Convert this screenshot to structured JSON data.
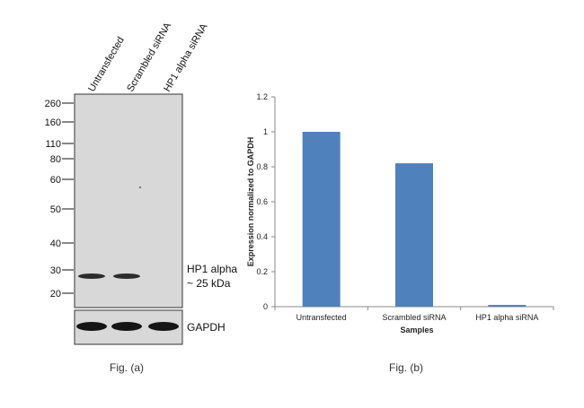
{
  "blot": {
    "lanes": [
      "Untransfected",
      "Scrambled siRNA",
      "HP1 alpha siRNA"
    ],
    "mw_markers": [
      "260",
      "160",
      "110",
      "80",
      "60",
      "50",
      "40",
      "30",
      "20"
    ],
    "band_label_line1": "HP1 alpha",
    "band_label_line2": "~ 25 kDa",
    "loading_control": "GAPDH",
    "band_present": [
      true,
      true,
      false
    ],
    "caption": "Fig. (a)"
  },
  "chart_data": {
    "type": "bar",
    "categories": [
      "Untransfected",
      "Scrambled siRNA",
      "HP1 alpha siRNA"
    ],
    "values": [
      1.0,
      0.82,
      0.01
    ],
    "xlabel": "Samples",
    "ylabel": "Expression  normalized to GAPDH",
    "ylim": [
      0,
      1.2
    ],
    "yticks": [
      "0",
      "0.2",
      "0.4",
      "0.6",
      "0.8",
      "1",
      "1.2"
    ],
    "bar_color": "#4f81bd",
    "grid": false,
    "caption": "Fig. (b)"
  }
}
